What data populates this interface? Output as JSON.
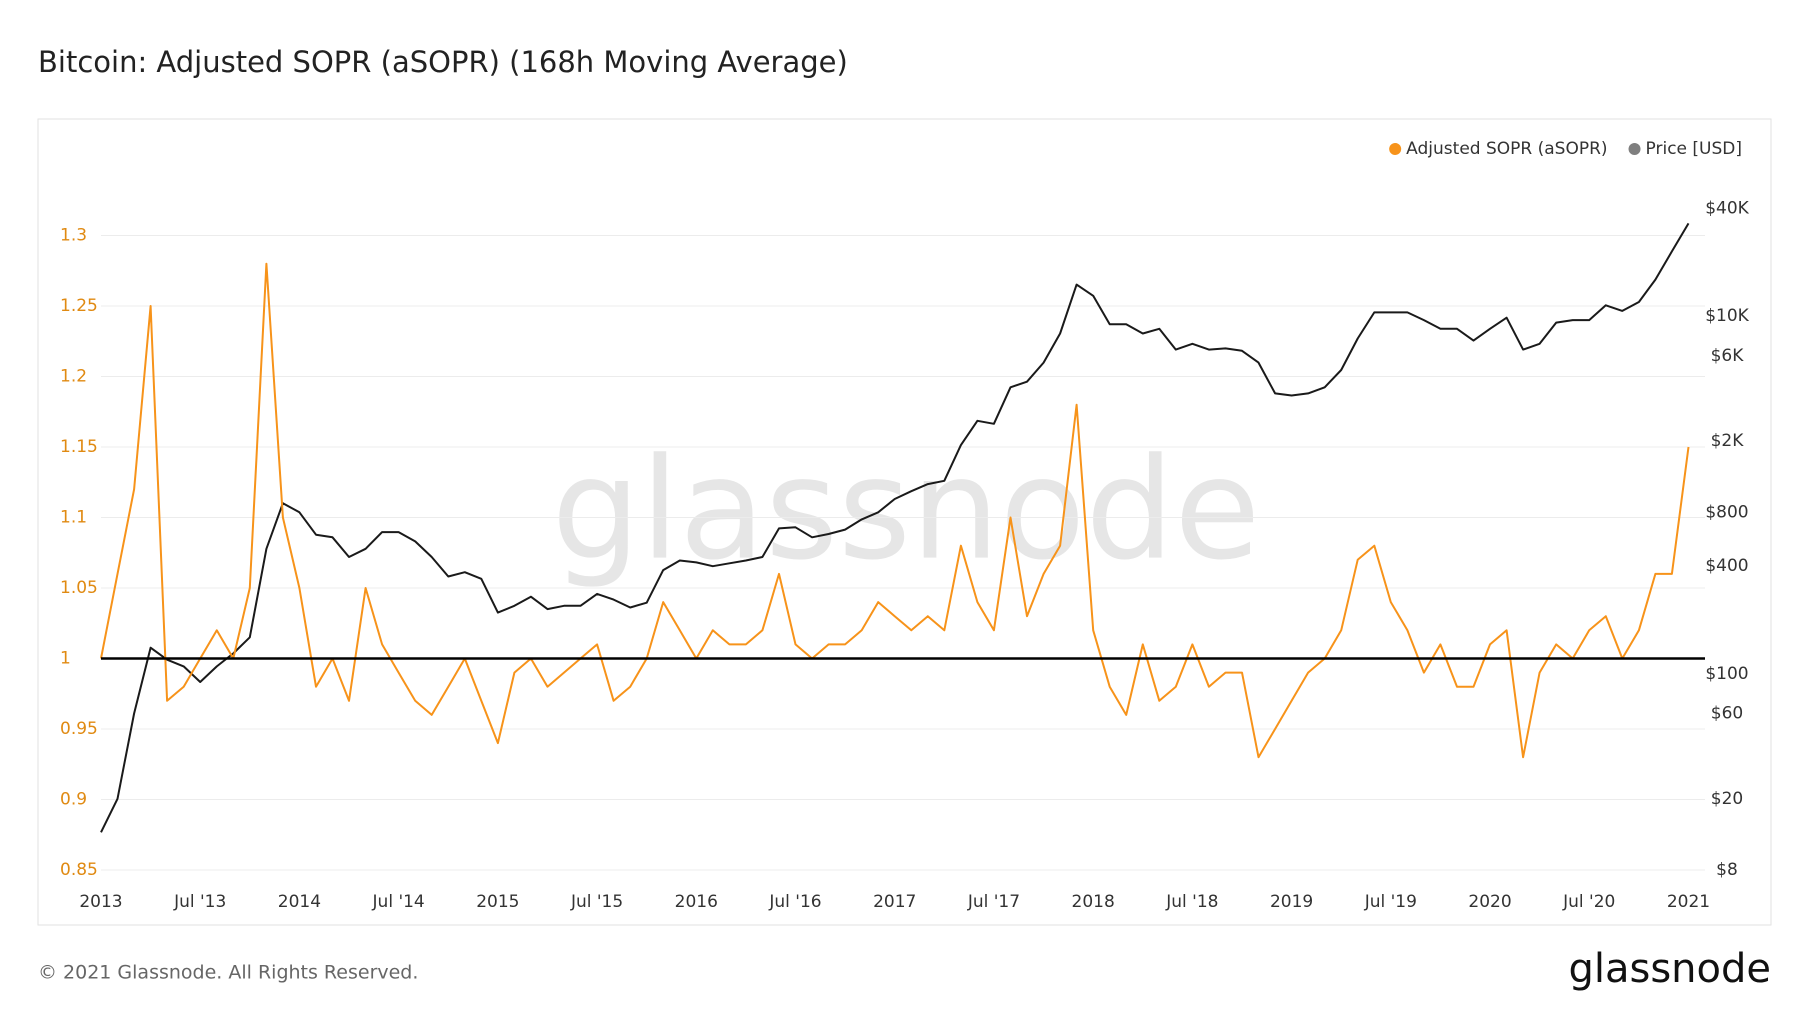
{
  "chart_data": {
    "type": "line",
    "title": "Bitcoin: Adjusted SOPR (aSOPR) (168h Moving Average)",
    "watermark": "glassnode",
    "x": [
      "2013-01",
      "2013-02",
      "2013-03",
      "2013-04",
      "2013-05",
      "2013-06",
      "2013-07",
      "2013-08",
      "2013-09",
      "2013-10",
      "2013-11",
      "2013-12",
      "2014-01",
      "2014-02",
      "2014-03",
      "2014-04",
      "2014-05",
      "2014-06",
      "2014-07",
      "2014-08",
      "2014-09",
      "2014-10",
      "2014-11",
      "2014-12",
      "2015-01",
      "2015-02",
      "2015-03",
      "2015-04",
      "2015-05",
      "2015-06",
      "2015-07",
      "2015-08",
      "2015-09",
      "2015-10",
      "2015-11",
      "2015-12",
      "2016-01",
      "2016-02",
      "2016-03",
      "2016-04",
      "2016-05",
      "2016-06",
      "2016-07",
      "2016-08",
      "2016-09",
      "2016-10",
      "2016-11",
      "2016-12",
      "2017-01",
      "2017-02",
      "2017-03",
      "2017-04",
      "2017-05",
      "2017-06",
      "2017-07",
      "2017-08",
      "2017-09",
      "2017-10",
      "2017-11",
      "2017-12",
      "2018-01",
      "2018-02",
      "2018-03",
      "2018-04",
      "2018-05",
      "2018-06",
      "2018-07",
      "2018-08",
      "2018-09",
      "2018-10",
      "2018-11",
      "2018-12",
      "2019-01",
      "2019-02",
      "2019-03",
      "2019-04",
      "2019-05",
      "2019-06",
      "2019-07",
      "2019-08",
      "2019-09",
      "2019-10",
      "2019-11",
      "2019-12",
      "2020-01",
      "2020-02",
      "2020-03",
      "2020-04",
      "2020-05",
      "2020-06",
      "2020-07",
      "2020-08",
      "2020-09",
      "2020-10",
      "2020-11",
      "2020-12",
      "2021-01"
    ],
    "series": [
      {
        "name": "Adjusted SOPR (aSOPR)",
        "color": "#f7931a",
        "axis": "y",
        "values": [
          1.0,
          1.06,
          1.12,
          1.25,
          0.97,
          0.98,
          1.0,
          1.02,
          1.0,
          1.05,
          1.28,
          1.1,
          1.05,
          0.98,
          1.0,
          0.97,
          1.05,
          1.01,
          0.99,
          0.97,
          0.96,
          0.98,
          1.0,
          0.97,
          0.94,
          0.99,
          1.0,
          0.98,
          0.99,
          1.0,
          1.01,
          0.97,
          0.98,
          1.0,
          1.04,
          1.02,
          1.0,
          1.02,
          1.01,
          1.01,
          1.02,
          1.06,
          1.01,
          1.0,
          1.01,
          1.01,
          1.02,
          1.04,
          1.03,
          1.02,
          1.03,
          1.02,
          1.08,
          1.04,
          1.02,
          1.1,
          1.03,
          1.06,
          1.08,
          1.18,
          1.02,
          0.98,
          0.96,
          1.01,
          0.97,
          0.98,
          1.01,
          0.98,
          0.99,
          0.99,
          0.93,
          0.95,
          0.97,
          0.99,
          1.0,
          1.02,
          1.07,
          1.08,
          1.04,
          1.02,
          0.99,
          1.01,
          0.98,
          0.98,
          1.01,
          1.02,
          0.93,
          0.99,
          1.01,
          1.0,
          1.02,
          1.03,
          1.0,
          1.02,
          1.06,
          1.06,
          1.15
        ]
      },
      {
        "name": "Price [USD]",
        "color": "#1a1a1a",
        "legend_color": "#7f7f7f",
        "axis": "y2",
        "values": [
          13,
          20,
          60,
          140,
          120,
          110,
          90,
          110,
          130,
          160,
          500,
          900,
          800,
          600,
          580,
          450,
          500,
          620,
          620,
          550,
          450,
          350,
          370,
          340,
          220,
          240,
          270,
          230,
          240,
          240,
          280,
          260,
          235,
          250,
          380,
          430,
          420,
          400,
          415,
          430,
          450,
          650,
          660,
          580,
          605,
          640,
          730,
          800,
          950,
          1050,
          1150,
          1200,
          1900,
          2600,
          2500,
          4000,
          4300,
          5500,
          8000,
          15000,
          13000,
          9000,
          9000,
          8000,
          8500,
          6500,
          7000,
          6500,
          6600,
          6400,
          5500,
          3700,
          3600,
          3700,
          4000,
          5000,
          7500,
          10500,
          10500,
          10500,
          9500,
          8500,
          8500,
          7300,
          8500,
          9800,
          6500,
          7000,
          9200,
          9500,
          9500,
          11500,
          10700,
          12000,
          16000,
          23000,
          33000
        ]
      }
    ],
    "xlim": [
      "2013-01",
      "2021-02"
    ],
    "xticks": [
      {
        "value": "2013-01",
        "label": "2013"
      },
      {
        "value": "2013-07",
        "label": "Jul '13"
      },
      {
        "value": "2014-01",
        "label": "2014"
      },
      {
        "value": "2014-07",
        "label": "Jul '14"
      },
      {
        "value": "2015-01",
        "label": "2015"
      },
      {
        "value": "2015-07",
        "label": "Jul '15"
      },
      {
        "value": "2016-01",
        "label": "2016"
      },
      {
        "value": "2016-07",
        "label": "Jul '16"
      },
      {
        "value": "2017-01",
        "label": "2017"
      },
      {
        "value": "2017-07",
        "label": "Jul '17"
      },
      {
        "value": "2018-01",
        "label": "2018"
      },
      {
        "value": "2018-07",
        "label": "Jul '18"
      },
      {
        "value": "2019-01",
        "label": "2019"
      },
      {
        "value": "2019-07",
        "label": "Jul '19"
      },
      {
        "value": "2020-01",
        "label": "2020"
      },
      {
        "value": "2020-07",
        "label": "Jul '20"
      },
      {
        "value": "2021-01",
        "label": "2021"
      }
    ],
    "ylim": [
      0.85,
      1.35
    ],
    "yticks": [
      0.85,
      0.9,
      0.95,
      1,
      1.05,
      1.1,
      1.15,
      1.2,
      1.25,
      1.3
    ],
    "ytick_color": "#e08a12",
    "y2lim": [
      8,
      70000
    ],
    "y2log": true,
    "y2ticks": [
      {
        "value": 8,
        "label": "$8"
      },
      {
        "value": 20,
        "label": "$20"
      },
      {
        "value": 60,
        "label": "$60"
      },
      {
        "value": 100,
        "label": "$100"
      },
      {
        "value": 400,
        "label": "$400"
      },
      {
        "value": 800,
        "label": "$800"
      },
      {
        "value": 2000,
        "label": "$2K"
      },
      {
        "value": 6000,
        "label": "$6K"
      },
      {
        "value": 10000,
        "label": "$10K"
      },
      {
        "value": 40000,
        "label": "$40K"
      }
    ],
    "grid": true,
    "reference_line": 1,
    "legend": "top-right"
  },
  "footer": {
    "copyright": "© 2021 Glassnode. All Rights Reserved.",
    "logo": "glassnode"
  }
}
